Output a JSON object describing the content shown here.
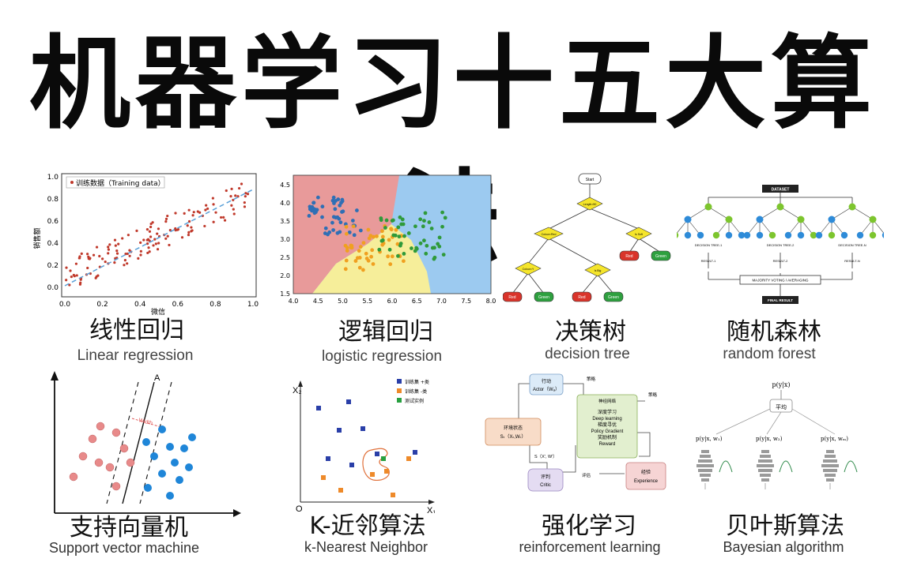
{
  "title": "机器学习十五大算法",
  "algorithms": [
    {
      "zh": "线性回归",
      "en": "Linear regression"
    },
    {
      "zh": "逻辑回归",
      "en": "logistic regression"
    },
    {
      "zh": "决策树",
      "en": "decision tree"
    },
    {
      "zh": "随机森林",
      "en": "random forest"
    },
    {
      "zh": "支持向量机",
      "en": "Support vector machine"
    },
    {
      "zh": "K-近邻算法",
      "en": "k-Nearest Neighbor"
    },
    {
      "zh": "强化学习",
      "en": "reinforcement learning"
    },
    {
      "zh": "贝叶斯算法",
      "en": "Bayesian algorithm"
    }
  ],
  "linear": {
    "legend": "训练数据（Training data）",
    "xlabel": "微信",
    "ylabel": "销售额",
    "xticks": [
      "0.0",
      "0.2",
      "0.4",
      "0.6",
      "0.8",
      "1.0"
    ],
    "yticks": [
      "0.0",
      "0.2",
      "0.4",
      "0.6",
      "0.8",
      "1.0"
    ],
    "point_color": "#c0392b",
    "line_color": "#5aa0d8"
  },
  "logistic": {
    "xticks": [
      "4.0",
      "4.5",
      "5.0",
      "5.5",
      "6.0",
      "6.5",
      "7.0",
      "7.5",
      "8.0"
    ],
    "yticks": [
      "1.5",
      "2.0",
      "2.5",
      "3.0",
      "3.5",
      "4.0",
      "4.5"
    ],
    "region_colors": [
      "#e89a9a",
      "#f6ee9a",
      "#9ccaf0"
    ],
    "point_colors": [
      "#2f6fb5",
      "#f0a020",
      "#2f9a3a"
    ]
  },
  "decision_tree": {
    "start": "Start",
    "nodes": [
      "Length>50",
      "Colour=Red",
      "Is Soft",
      "Colour=Y",
      "Is Big"
    ],
    "leaves": [
      "Red",
      "Green",
      "Red",
      "Green",
      "Red",
      "Green"
    ],
    "leaf_colors": [
      "#d9342b",
      "#2ea03f"
    ],
    "node_color": "#f5e52b"
  },
  "random_forest": {
    "dataset": "DATASET",
    "trees": [
      "DECISION TREE-1",
      "DECISION TREE-2",
      "DECISION TREE-N"
    ],
    "results": [
      "RESULT-1",
      "RESULT-2",
      "RESULT-N"
    ],
    "vote": "MAJORITY VOTING / AVERAGING",
    "final": "FINAL RESULT",
    "colors": [
      "#2e8bd8",
      "#7dc52e"
    ]
  },
  "svm": {
    "axis_label": "A",
    "margin_label": "Width",
    "class_colors": [
      "#e88a8a",
      "#1f86d8"
    ]
  },
  "knn": {
    "x_label": "X₁",
    "y_label": "X₂",
    "origin": "O",
    "legend": [
      "训练集 +类",
      "训练集 -类",
      "测试实例"
    ],
    "colors": [
      "#2a3fa8",
      "#ee8a2a",
      "#28a040"
    ]
  },
  "rl": {
    "actor": "行动",
    "actor_en": "Actor（Wₐ）",
    "policy": "策略",
    "neural": "神经网络",
    "dl_lines": [
      "深度学习",
      "Deep learning",
      "梯度寻优",
      "Policy Gradient",
      "奖励机制",
      "Reward"
    ],
    "env": "环境状态",
    "env_en": "Sₜ（Xₜ,Wₜ）",
    "critic": "评判",
    "critic_en": "Critic",
    "eval": "评估",
    "exp": "经验",
    "exp_en": "Experience",
    "s_label": "S（X', W'）"
  },
  "bayes": {
    "top": "p(y|x)",
    "avg": "平均",
    "models": [
      "p(y|x, w₁)",
      "p(y|x, w₂)",
      "p(y|x, wₘ)"
    ]
  }
}
